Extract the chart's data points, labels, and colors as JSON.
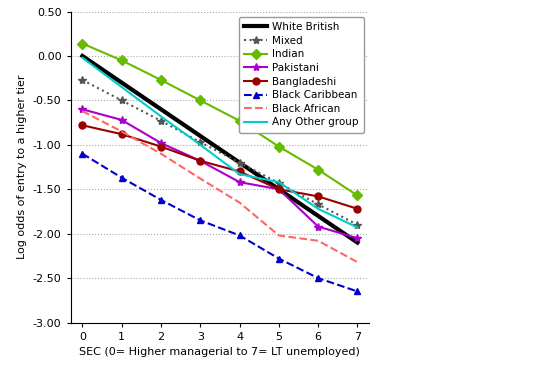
{
  "x": [
    0,
    1,
    2,
    3,
    4,
    5,
    6,
    7
  ],
  "series": {
    "White British": {
      "y": [
        0.0,
        -0.3,
        -0.6,
        -0.9,
        -1.2,
        -1.5,
        -1.8,
        -2.1
      ],
      "color": "#000000",
      "linestyle": "-",
      "linewidth": 3.0,
      "marker": null
    },
    "Mixed": {
      "y": [
        -0.27,
        -0.5,
        -0.73,
        -0.97,
        -1.2,
        -1.43,
        -1.67,
        -1.9
      ],
      "color": "#555555",
      "linestyle": ":",
      "linewidth": 1.5,
      "marker": "*"
    },
    "Indian": {
      "y": [
        0.14,
        -0.05,
        -0.27,
        -0.5,
        -0.73,
        -1.02,
        -1.28,
        -1.57
      ],
      "color": "#66bb00",
      "linestyle": "-",
      "linewidth": 1.5,
      "marker": "D"
    },
    "Pakistani": {
      "y": [
        -0.6,
        -0.72,
        -0.98,
        -1.18,
        -1.42,
        -1.5,
        -1.92,
        -2.05
      ],
      "color": "#aa00cc",
      "linestyle": "-",
      "linewidth": 1.5,
      "marker": "*"
    },
    "Bangladeshi": {
      "y": [
        -0.78,
        -0.88,
        -1.02,
        -1.18,
        -1.3,
        -1.5,
        -1.58,
        -1.72
      ],
      "color": "#990000",
      "linestyle": "-",
      "linewidth": 1.5,
      "marker": "o"
    },
    "Black Caribbean": {
      "y": [
        -1.1,
        -1.37,
        -1.62,
        -1.85,
        -2.02,
        -2.28,
        -2.5,
        -2.65
      ],
      "color": "#0000cc",
      "linestyle": "--",
      "linewidth": 1.5,
      "marker": "^"
    },
    "Black African": {
      "y": [
        -0.62,
        -0.85,
        -1.1,
        -1.38,
        -1.65,
        -2.02,
        -2.08,
        -2.32
      ],
      "color": "#ff6666",
      "linestyle": "--",
      "linewidth": 1.5,
      "marker": null
    },
    "Any Other group": {
      "y": [
        -0.02,
        -0.35,
        -0.68,
        -1.0,
        -1.33,
        -1.42,
        -1.72,
        -1.93
      ],
      "color": "#00cccc",
      "linestyle": "-",
      "linewidth": 1.5,
      "marker": null
    }
  },
  "xlabel": "SEC (0= Higher managerial to 7= LT unemployed)",
  "ylabel": "Log odds of entry to a higher tier",
  "ylim": [
    -3.0,
    0.5
  ],
  "xlim": [
    -0.3,
    7.3
  ],
  "yticks": [
    0.5,
    0.0,
    -0.5,
    -1.0,
    -1.5,
    -2.0,
    -2.5,
    -3.0
  ],
  "xticks": [
    0,
    1,
    2,
    3,
    4,
    5,
    6,
    7
  ],
  "grid_color": "#aaaaaa",
  "background_color": "#ffffff",
  "legend_order": [
    "White British",
    "Mixed",
    "Indian",
    "Pakistani",
    "Bangladeshi",
    "Black Caribbean",
    "Black African",
    "Any Other group"
  ]
}
